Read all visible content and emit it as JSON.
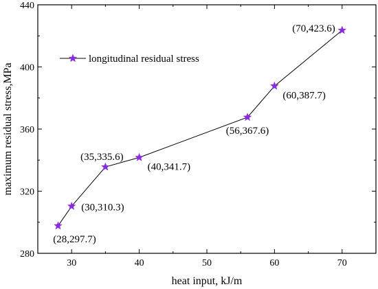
{
  "chart_data": {
    "type": "line",
    "xlabel": "heat input, kJ/m",
    "ylabel": "maximum residual stress,MPa",
    "xlim": [
      25,
      75
    ],
    "ylim": [
      280,
      440
    ],
    "x_ticks": [
      30,
      40,
      50,
      60,
      70
    ],
    "y_ticks": [
      280,
      320,
      360,
      400,
      440
    ],
    "grid": false,
    "legend_position": "upper-left",
    "series": [
      {
        "name": "longitudinal residual stress",
        "color": "#8a2be2",
        "marker": "star",
        "x": [
          28,
          30,
          35,
          40,
          56,
          60,
          70
        ],
        "y": [
          297.7,
          310.3,
          335.6,
          341.7,
          367.6,
          387.7,
          423.6
        ]
      }
    ],
    "annotations": [
      {
        "text": "(28,297.7)",
        "position": "below"
      },
      {
        "text": "(30,310.3)",
        "position": "right"
      },
      {
        "text": "(35,335.6)",
        "position": "above"
      },
      {
        "text": "(40,341.7)",
        "position": "below-right"
      },
      {
        "text": "(56,367.6)",
        "position": "below"
      },
      {
        "text": "(60,387.7)",
        "position": "below-right"
      },
      {
        "text": "(70,423.6)",
        "position": "left"
      }
    ]
  }
}
